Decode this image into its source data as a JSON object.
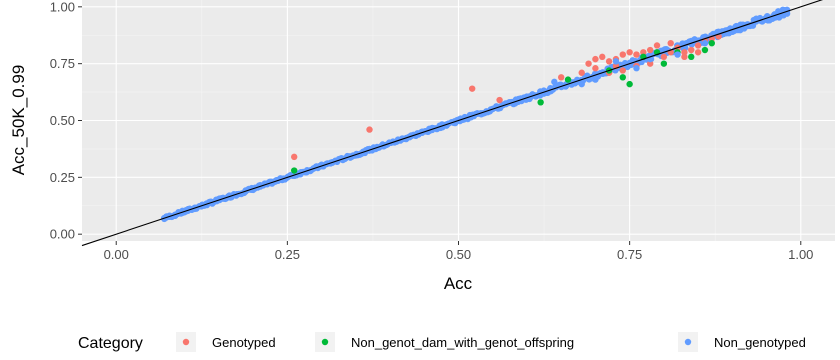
{
  "chart_data": {
    "type": "scatter",
    "xlabel": "Acc",
    "ylabel": "Acc_50K_0.99",
    "xlim": [
      -0.05,
      1.05
    ],
    "ylim": [
      -0.03,
      1.03
    ],
    "x_ticks": [
      "0.00",
      "0.25",
      "0.50",
      "0.75",
      "1.00"
    ],
    "y_ticks": [
      "0.00",
      "0.25",
      "0.50",
      "0.75",
      "1.00"
    ],
    "grid": true,
    "reference_line": {
      "slope": 1,
      "intercept": 0
    },
    "legend": {
      "title": "Category",
      "position": "bottom",
      "entries": [
        "Genotyped",
        "Non_genot_dam_with_genot_offspring",
        "Non_genotyped"
      ]
    },
    "series": [
      {
        "name": "Genotyped",
        "color": "#F8766D",
        "points": [
          [
            0.26,
            0.34
          ],
          [
            0.37,
            0.46
          ],
          [
            0.52,
            0.64
          ],
          [
            0.56,
            0.59
          ],
          [
            0.65,
            0.69
          ],
          [
            0.69,
            0.75
          ],
          [
            0.7,
            0.77
          ],
          [
            0.71,
            0.78
          ],
          [
            0.72,
            0.76
          ],
          [
            0.73,
            0.77
          ],
          [
            0.74,
            0.79
          ],
          [
            0.75,
            0.8
          ],
          [
            0.76,
            0.79
          ],
          [
            0.77,
            0.8
          ],
          [
            0.78,
            0.81
          ],
          [
            0.7,
            0.73
          ],
          [
            0.72,
            0.71
          ],
          [
            0.74,
            0.72
          ],
          [
            0.76,
            0.74
          ],
          [
            0.78,
            0.75
          ],
          [
            0.8,
            0.78
          ],
          [
            0.81,
            0.8
          ],
          [
            0.82,
            0.82
          ],
          [
            0.83,
            0.8
          ],
          [
            0.84,
            0.81
          ],
          [
            0.85,
            0.83
          ],
          [
            0.86,
            0.85
          ],
          [
            0.87,
            0.86
          ],
          [
            0.88,
            0.87
          ],
          [
            0.79,
            0.83
          ],
          [
            0.81,
            0.84
          ],
          [
            0.83,
            0.78
          ],
          [
            0.85,
            0.8
          ],
          [
            0.73,
            0.74
          ],
          [
            0.68,
            0.71
          ]
        ]
      },
      {
        "name": "Non_genot_dam_with_genot_offspring",
        "color": "#00BA38",
        "points": [
          [
            0.26,
            0.28
          ],
          [
            0.62,
            0.58
          ],
          [
            0.66,
            0.68
          ],
          [
            0.72,
            0.72
          ],
          [
            0.74,
            0.69
          ],
          [
            0.75,
            0.66
          ],
          [
            0.77,
            0.78
          ],
          [
            0.79,
            0.8
          ],
          [
            0.8,
            0.75
          ],
          [
            0.82,
            0.8
          ],
          [
            0.84,
            0.78
          ],
          [
            0.86,
            0.81
          ],
          [
            0.87,
            0.84
          ]
        ]
      },
      {
        "name": "Non_genotyped",
        "color": "#619CFF",
        "sample_range": [
          0.07,
          0.98
        ],
        "points": [
          [
            0.6,
            0.6
          ],
          [
            0.64,
            0.67
          ],
          [
            0.68,
            0.66
          ],
          [
            0.7,
            0.68
          ],
          [
            0.73,
            0.76
          ],
          [
            0.76,
            0.73
          ],
          [
            0.78,
            0.77
          ],
          [
            0.8,
            0.81
          ],
          [
            0.82,
            0.79
          ],
          [
            0.84,
            0.85
          ],
          [
            0.86,
            0.84
          ],
          [
            0.88,
            0.89
          ],
          [
            0.9,
            0.89
          ],
          [
            0.92,
            0.92
          ],
          [
            0.94,
            0.94
          ],
          [
            0.96,
            0.96
          ],
          [
            0.98,
            0.97
          ]
        ]
      }
    ]
  }
}
